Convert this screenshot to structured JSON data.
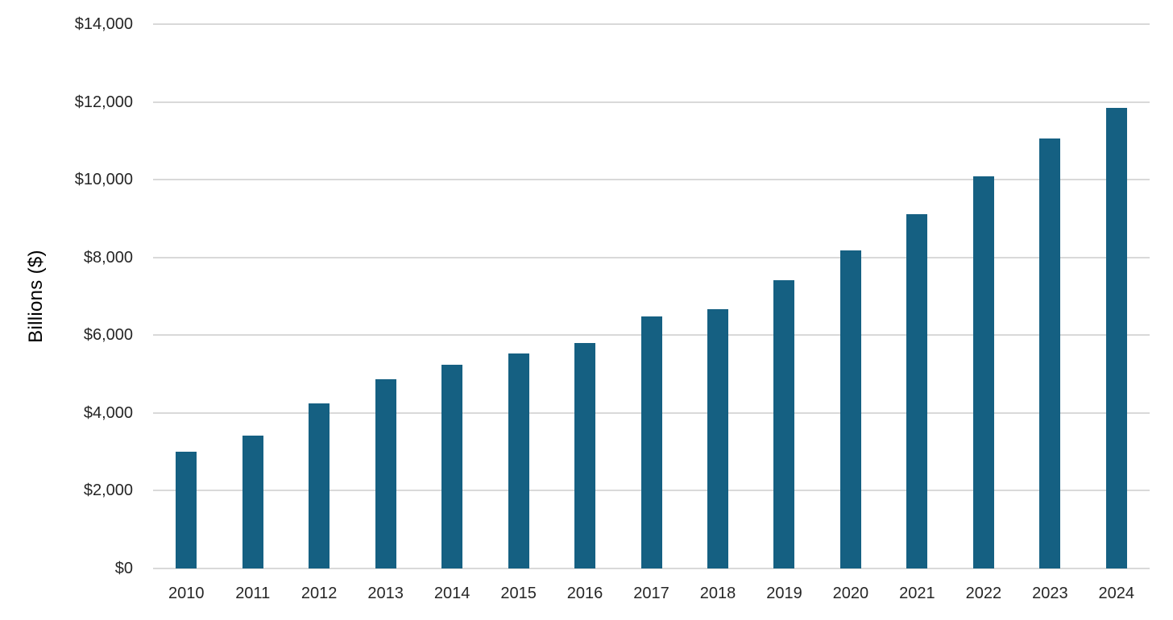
{
  "chart_data": {
    "type": "bar",
    "title": "",
    "xlabel": "",
    "ylabel": "Billions ($)",
    "categories": [
      "2010",
      "2011",
      "2012",
      "2013",
      "2014",
      "2015",
      "2016",
      "2017",
      "2018",
      "2019",
      "2020",
      "2021",
      "2022",
      "2023",
      "2024"
    ],
    "values": [
      3005,
      3420,
      4250,
      4860,
      5250,
      5520,
      5800,
      6490,
      6660,
      7410,
      8190,
      9110,
      10090,
      11050,
      11840
    ],
    "ylim": [
      0,
      14000
    ],
    "ytick_interval": 2000,
    "ytick_labels": [
      "$0",
      "$2,000",
      "$4,000",
      "$6,000",
      "$8,000",
      "$10,000",
      "$12,000",
      "$14,000"
    ],
    "grid": true,
    "legend_position": "none",
    "bar_color": "#156082",
    "gridline_color": "#D9D9D9",
    "tick_label_color": "#262626",
    "axis_title_color": "#000000"
  }
}
